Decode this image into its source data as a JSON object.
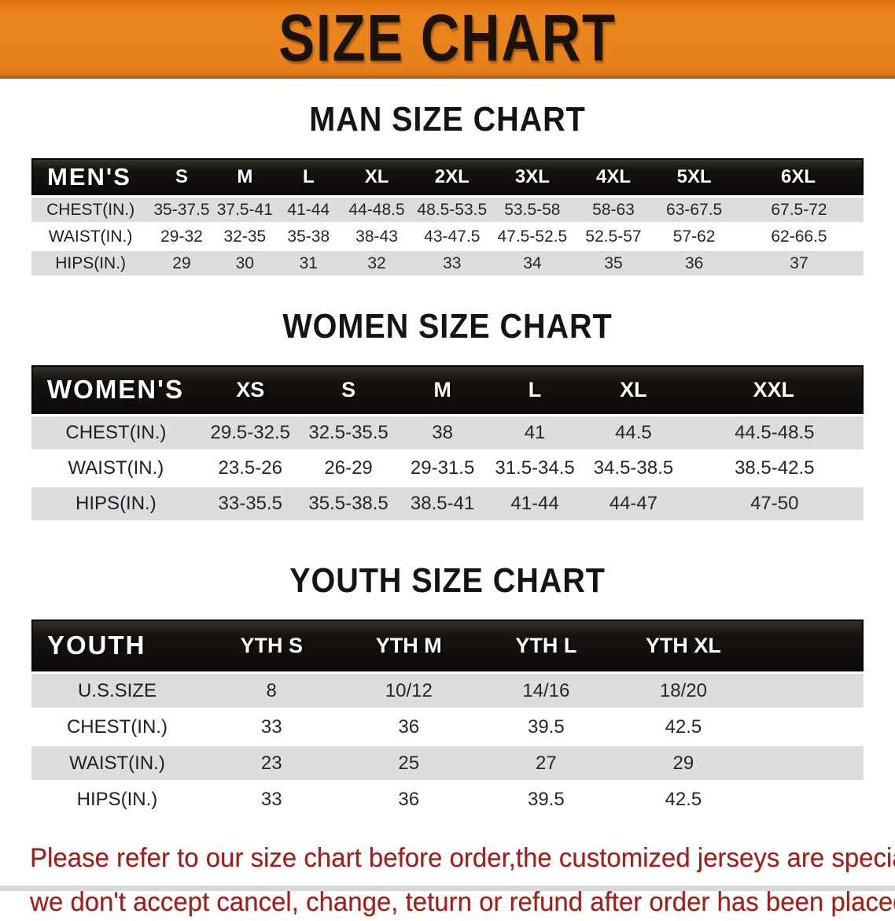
{
  "banner": {
    "title": "SIZE CHART",
    "bg_color": "#e8811b",
    "title_color": "#1b130a"
  },
  "sections": [
    {
      "heading": "MAN SIZE CHART",
      "table": {
        "corner_label": "MEN'S",
        "columns": [
          "S",
          "M",
          "L",
          "XL",
          "2XL",
          "3XL",
          "4XL",
          "5XL",
          "6XL"
        ],
        "rows": [
          {
            "label": "CHEST(IN.)",
            "values": [
              "35-37.5",
              "37.5-41",
              "41-44",
              "44-48.5",
              "48.5-53.5",
              "53.5-58",
              "58-63",
              "63-67.5",
              "67.5-72"
            ]
          },
          {
            "label": "WAIST(IN.)",
            "values": [
              "29-32",
              "32-35",
              "35-38",
              "38-43",
              "43-47.5",
              "47.5-52.5",
              "52.5-57",
              "57-62",
              "62-66.5"
            ]
          },
          {
            "label": "HIPS(IN.)",
            "values": [
              "29",
              "30",
              "31",
              "32",
              "33",
              "34",
              "35",
              "36",
              "37"
            ]
          }
        ]
      }
    },
    {
      "heading": "WOMEN SIZE CHART",
      "table": {
        "corner_label": "WOMEN'S",
        "columns": [
          "XS",
          "S",
          "M",
          "L",
          "XL",
          "XXL"
        ],
        "rows": [
          {
            "label": "CHEST(IN.)",
            "values": [
              "29.5-32.5",
              "32.5-35.5",
              "38",
              "41",
              "44.5",
              "44.5-48.5"
            ]
          },
          {
            "label": "WAIST(IN.)",
            "values": [
              "23.5-26",
              "26-29",
              "29-31.5",
              "31.5-34.5",
              "34.5-38.5",
              "38.5-42.5"
            ]
          },
          {
            "label": "HIPS(IN.)",
            "values": [
              "33-35.5",
              "35.5-38.5",
              "38.5-41",
              "41-44",
              "44-47",
              "47-50"
            ]
          }
        ]
      }
    },
    {
      "heading": "YOUTH SIZE CHART",
      "table": {
        "corner_label": "YOUTH",
        "columns": [
          "YTH S",
          "YTH M",
          "YTH L",
          "YTH XL"
        ],
        "rows": [
          {
            "label": "U.S.SIZE",
            "values": [
              "8",
              "10/12",
              "14/16",
              "18/20"
            ]
          },
          {
            "label": "CHEST(IN.)",
            "values": [
              "33",
              "36",
              "39.5",
              "42.5"
            ]
          },
          {
            "label": "WAIST(IN.)",
            "values": [
              "23",
              "25",
              "27",
              "29"
            ]
          },
          {
            "label": "HIPS(IN.)",
            "values": [
              "33",
              "36",
              "39.5",
              "42.5"
            ]
          }
        ]
      }
    }
  ],
  "footer": {
    "lines": [
      "Please refer to our size chart before order,the customized jerseys are special products,",
      "we don't accept cancel, change, teturn or refund after order has been placed!"
    ],
    "color": "#a02019"
  },
  "colors": {
    "banner_orange": "#e8811b",
    "header_band_black": "#12100e",
    "row_stripe_gray": "#dcddde",
    "notice_red": "#a02019"
  }
}
